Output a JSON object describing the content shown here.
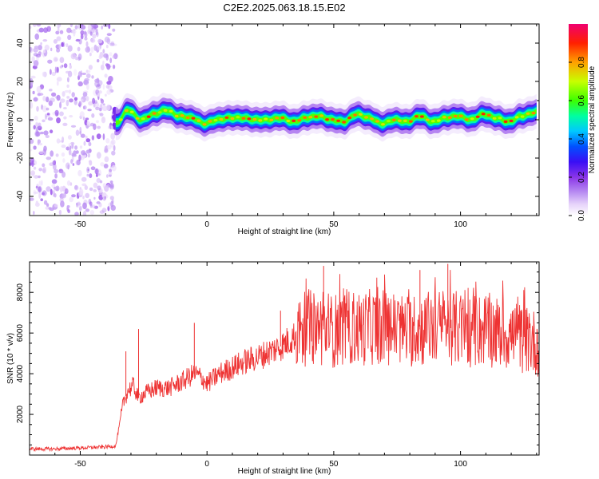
{
  "title": "C2E2.2025.063.18.15.E02",
  "chart_data": [
    {
      "type": "heatmap",
      "xlabel": "Height of straight line (km)",
      "ylabel": "Frequency (Hz)",
      "xlim": [
        -70,
        131
      ],
      "ylim": [
        -50,
        50
      ],
      "x_ticks": [
        -50,
        0,
        50,
        100
      ],
      "y_ticks": [
        -40,
        -20,
        0,
        20,
        40
      ],
      "colorbar": {
        "label": "Normalized spectral amplitude",
        "range": [
          0,
          1
        ],
        "ticks": [
          0.0,
          0.2,
          0.4,
          0.6,
          0.8
        ],
        "colormap": [
          "#ffffff",
          "#e9d7fb",
          "#b98ef2",
          "#8a35e8",
          "#3a0ef5",
          "#0050ff",
          "#00c8ff",
          "#00ffa0",
          "#3cff00",
          "#c8ff00",
          "#ffa000",
          "#ff2000",
          "#f00070"
        ]
      },
      "regions": [
        {
          "x_range": [
            -70,
            -36
          ],
          "description_freq_range": [
            -50,
            50
          ],
          "amplitude_level": 0.15
        },
        {
          "x_range": [
            -36,
            131
          ],
          "freq_center": 0,
          "freq_halfwidth": 5,
          "peak_amplitude": 0.9
        }
      ],
      "ridge": {
        "x": [
          -36,
          -31,
          -26,
          -21,
          -16,
          -11,
          -6,
          -1,
          4,
          9,
          14,
          19,
          24,
          29,
          34,
          39,
          44,
          49,
          54,
          59,
          64,
          69,
          74,
          79,
          84,
          89,
          94,
          99,
          104,
          109,
          114,
          119,
          124,
          130
        ],
        "freq": [
          -2,
          5,
          0,
          3,
          5,
          2,
          1,
          -2,
          0,
          1,
          1,
          0,
          0,
          1,
          -1,
          1,
          2,
          0,
          -1,
          3,
          1,
          -2,
          0,
          -1,
          2,
          -1,
          1,
          2,
          0,
          3,
          1,
          -1,
          2,
          4
        ]
      }
    },
    {
      "type": "line",
      "xlabel": "Height of straight line (km)",
      "ylabel": "SNR (10 * v/v)",
      "xlim": [
        -70,
        131
      ],
      "ylim": [
        0,
        9500
      ],
      "x_ticks": [
        -50,
        0,
        50,
        100
      ],
      "y_ticks": [
        2000,
        4000,
        6000,
        8000
      ],
      "color": "#ee3333",
      "series": [
        {
          "x": [
            -70,
            -60,
            -50,
            -40,
            -36,
            -33,
            -31,
            -29,
            -27,
            -25,
            -20,
            -15,
            -10,
            -5,
            -2,
            0,
            5,
            10,
            15,
            20,
            25,
            30,
            35,
            40,
            45,
            50,
            55,
            60,
            65,
            70,
            75,
            80,
            85,
            90,
            95,
            100,
            105,
            110,
            115,
            120,
            125,
            130
          ],
          "values": [
            300,
            300,
            350,
            400,
            450,
            2600,
            3200,
            3400,
            2800,
            3000,
            3300,
            3300,
            3600,
            4000,
            3800,
            3500,
            4000,
            4300,
            4600,
            4800,
            5100,
            5400,
            5900,
            6300,
            6200,
            6100,
            6300,
            6200,
            6300,
            6300,
            6200,
            6100,
            6200,
            6300,
            6300,
            6200,
            6100,
            6200,
            6000,
            5900,
            5700,
            5500
          ]
        }
      ],
      "annotations_spikes": [
        {
          "x": -32,
          "y": 5100
        },
        {
          "x": -27,
          "y": 6200
        },
        {
          "x": -5,
          "y": 6500
        },
        {
          "x": 29,
          "y": 7100
        },
        {
          "x": 46,
          "y": 9300
        },
        {
          "x": 84,
          "y": 9100
        },
        {
          "x": 95,
          "y": 9400
        }
      ]
    }
  ]
}
